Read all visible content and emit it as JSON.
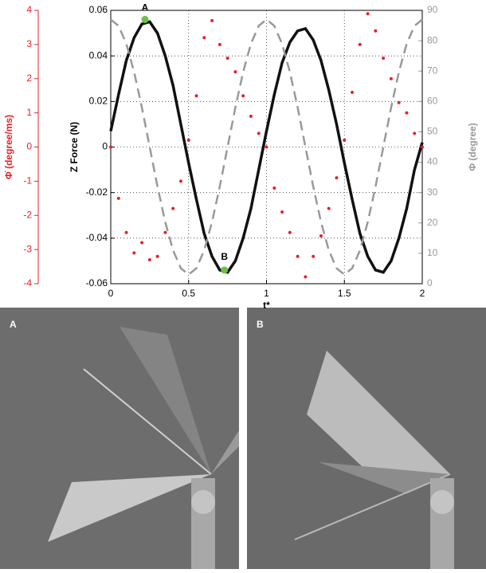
{
  "chart_data": {
    "type": "line",
    "xlabel": "t*",
    "ylabel": "Z Force (N)",
    "y2label": "Φ (degree)",
    "y3label": "Φ̇ (degree/ms)",
    "x": [
      0,
      0.05,
      0.1,
      0.15,
      0.2,
      0.25,
      0.3,
      0.35,
      0.4,
      0.45,
      0.5,
      0.55,
      0.6,
      0.65,
      0.7,
      0.75,
      0.8,
      0.85,
      0.9,
      0.95,
      1,
      1.05,
      1.1,
      1.15,
      1.2,
      1.25,
      1.3,
      1.35,
      1.4,
      1.45,
      1.5,
      1.55,
      1.6,
      1.65,
      1.7,
      1.75,
      1.8,
      1.85,
      1.9,
      1.95,
      2
    ],
    "xlim": [
      0,
      2
    ],
    "xticks": [
      0,
      0.5,
      1,
      1.5,
      2
    ],
    "ylim": [
      -0.06,
      0.06
    ],
    "yticks": [
      -0.06,
      -0.04,
      -0.02,
      0,
      0.02,
      0.04,
      0.06
    ],
    "y2lim": [
      0,
      90
    ],
    "y2ticks": [
      0,
      10,
      20,
      30,
      40,
      50,
      60,
      70,
      80,
      90
    ],
    "y3lim": [
      -4,
      4
    ],
    "y3ticks": [
      -4,
      -3,
      -2,
      -1,
      0,
      1,
      2,
      3,
      4
    ],
    "grid": true,
    "series": [
      {
        "color": "#111111",
        "style": "solid",
        "axis": "y",
        "values": [
          0.007,
          0.023,
          0.038,
          0.048,
          0.054,
          0.055,
          0.05,
          0.04,
          0.027,
          0.01,
          -0.007,
          -0.023,
          -0.038,
          -0.048,
          -0.054,
          -0.055,
          -0.05,
          -0.04,
          -0.027,
          -0.01,
          0.007,
          0.023,
          0.037,
          0.046,
          0.051,
          0.052,
          0.047,
          0.038,
          0.025,
          0.01,
          -0.007,
          -0.023,
          -0.038,
          -0.048,
          -0.054,
          -0.055,
          -0.05,
          -0.04,
          -0.027,
          -0.01,
          0.002
        ]
      },
      {
        "color": "#999999",
        "style": "dashed",
        "axis": "y2",
        "values": [
          87,
          84.9,
          79,
          69.7,
          58,
          45,
          32,
          20.3,
          11,
          5.1,
          3,
          5.1,
          11,
          20.3,
          32,
          45,
          58,
          69.7,
          79,
          84.9,
          87,
          84.9,
          79,
          69.7,
          58,
          45,
          32,
          20.3,
          11,
          5.1,
          3,
          5.1,
          11,
          20.3,
          32,
          45,
          58,
          69.7,
          79,
          84.9,
          87
        ]
      },
      {
        "color": "#e8202a",
        "style": "dotted",
        "axis": "y3",
        "values": [
          0,
          -1.5,
          -2.5,
          -3.1,
          -2.8,
          -3.3,
          -3.2,
          -2.5,
          -1.8,
          -1,
          0.2,
          1.5,
          3.2,
          3.7,
          3,
          2.6,
          2.2,
          1.5,
          0.9,
          0.4,
          0,
          -1.2,
          -1.9,
          -2.5,
          -3.2,
          -3.8,
          -3.2,
          -2.6,
          -1.8,
          -0.9,
          0.2,
          1.6,
          3,
          3.9,
          3.4,
          2.6,
          2,
          1.3,
          1,
          0.4,
          0
        ]
      }
    ],
    "annotations": [
      {
        "text": "A",
        "x": 0.22,
        "y": 0.056,
        "color": "#6cc04a"
      },
      {
        "text": "B",
        "x": 0.73,
        "y": -0.054,
        "color": "#6cc04a"
      }
    ]
  },
  "panels": [
    {
      "label": "A"
    },
    {
      "label": "B"
    }
  ]
}
